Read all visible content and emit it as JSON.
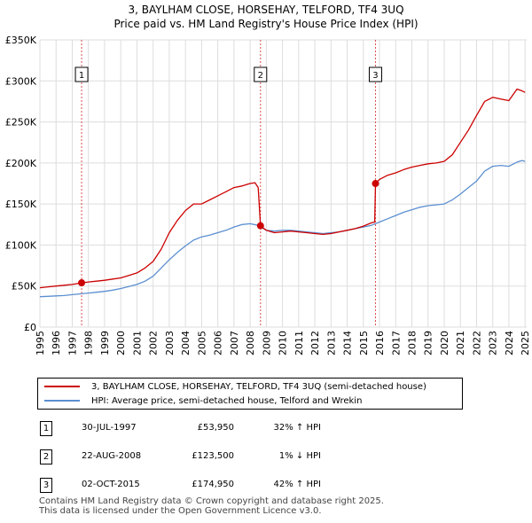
{
  "header": {
    "title": "3, BAYLHAM CLOSE, HORSEHAY, TELFORD, TF4 3UQ",
    "subtitle": "Price paid vs. HM Land Registry's House Price Index (HPI)"
  },
  "colors": {
    "property": "#cc0000",
    "hpi": "#5b8fd0",
    "grid": "#dddddd",
    "marker": "#cc0000",
    "plot_bg": "#ffffff"
  },
  "chart_data": {
    "type": "line",
    "title": "3, BAYLHAM CLOSE, HORSEHAY, TELFORD, TF4 3UQ",
    "subtitle": "Price paid vs. HM Land Registry's House Price Index (HPI)",
    "xlabel": "",
    "ylabel": "",
    "xlim": [
      1995,
      2025.1
    ],
    "ylim": [
      0,
      350000
    ],
    "x_ticks": [
      1995,
      1996,
      1997,
      1998,
      1999,
      2000,
      2001,
      2002,
      2003,
      2004,
      2005,
      2006,
      2007,
      2008,
      2009,
      2010,
      2011,
      2012,
      2013,
      2014,
      2015,
      2016,
      2017,
      2018,
      2019,
      2020,
      2021,
      2022,
      2023,
      2024,
      2025
    ],
    "y_ticks": [
      0,
      50000,
      100000,
      150000,
      200000,
      250000,
      300000,
      350000
    ],
    "y_tick_labels": [
      "£0",
      "£50K",
      "£100K",
      "£150K",
      "£200K",
      "£250K",
      "£300K",
      "£350K"
    ],
    "grid": true,
    "series": [
      {
        "name": "3, BAYLHAM CLOSE, HORSEHAY, TELFORD, TF4 3UQ (semi-detached house)",
        "x": [
          1995,
          1995.5,
          1996,
          1996.5,
          1997,
          1997.58,
          1998,
          1998.5,
          1999,
          1999.5,
          2000,
          2000.5,
          2001,
          2001.5,
          2002,
          2002.5,
          2003,
          2003.5,
          2004,
          2004.5,
          2005,
          2005.5,
          2006,
          2006.5,
          2007,
          2007.5,
          2008,
          2008.3,
          2008.5,
          2008.64,
          2009,
          2009.5,
          2010,
          2010.5,
          2011,
          2011.5,
          2012,
          2012.5,
          2013,
          2013.5,
          2014,
          2014.5,
          2015,
          2015.5,
          2015.7,
          2015.75,
          2016,
          2016.5,
          2017,
          2017.5,
          2018,
          2018.5,
          2019,
          2019.5,
          2020,
          2020.5,
          2021,
          2021.5,
          2022,
          2022.5,
          2023,
          2023.5,
          2024,
          2024.5,
          2024.8,
          2025
        ],
        "values": [
          48000,
          49000,
          50000,
          51000,
          52000,
          53950,
          55000,
          56000,
          57000,
          58500,
          60000,
          63000,
          66000,
          72000,
          80000,
          95000,
          115000,
          130000,
          142000,
          150000,
          150000,
          155000,
          160000,
          165000,
          170000,
          172000,
          175000,
          176000,
          170000,
          123500,
          118000,
          115000,
          116000,
          117000,
          116000,
          115000,
          114000,
          113000,
          114000,
          116000,
          118000,
          120000,
          123000,
          127000,
          128000,
          174950,
          180000,
          185000,
          188000,
          192000,
          195000,
          197000,
          199000,
          200000,
          202000,
          210000,
          225000,
          240000,
          258000,
          275000,
          280000,
          278000,
          276000,
          290000,
          288000,
          286000
        ]
      },
      {
        "name": "HPI: Average price, semi-detached house, Telford and Wrekin",
        "x": [
          1995,
          1995.5,
          1996,
          1996.5,
          1997,
          1997.5,
          1998,
          1998.5,
          1999,
          1999.5,
          2000,
          2000.5,
          2001,
          2001.5,
          2002,
          2002.5,
          2003,
          2003.5,
          2004,
          2004.5,
          2005,
          2005.5,
          2006,
          2006.5,
          2007,
          2007.5,
          2008,
          2008.5,
          2009,
          2009.5,
          2010,
          2010.5,
          2011,
          2011.5,
          2012,
          2012.5,
          2013,
          2013.5,
          2014,
          2014.5,
          2015,
          2015.5,
          2016,
          2016.5,
          2017,
          2017.5,
          2018,
          2018.5,
          2019,
          2019.5,
          2020,
          2020.5,
          2021,
          2021.5,
          2022,
          2022.5,
          2023,
          2023.5,
          2024,
          2024.5,
          2024.8,
          2025
        ],
        "values": [
          37000,
          37500,
          38000,
          38500,
          39500,
          40500,
          41500,
          42500,
          43500,
          45000,
          47000,
          49500,
          52000,
          56000,
          62000,
          72000,
          82000,
          91000,
          99000,
          106000,
          110000,
          112000,
          115000,
          118000,
          122000,
          125000,
          126000,
          124000,
          118000,
          117000,
          118000,
          118000,
          117000,
          116000,
          115000,
          114000,
          115000,
          116000,
          118000,
          120000,
          122000,
          124000,
          128000,
          132000,
          136000,
          140000,
          143000,
          146000,
          148000,
          149000,
          150000,
          155000,
          162000,
          170000,
          178000,
          190000,
          196000,
          197000,
          196000,
          201000,
          203000,
          202000
        ]
      }
    ],
    "sale_markers": [
      {
        "label": "1",
        "x": 1997.58,
        "value": 53950
      },
      {
        "label": "2",
        "x": 2008.64,
        "value": 123500
      },
      {
        "label": "3",
        "x": 2015.75,
        "value": 174950
      }
    ]
  },
  "legend": {
    "property_label": "3, BAYLHAM CLOSE, HORSEHAY, TELFORD, TF4 3UQ (semi-detached house)",
    "hpi_label": "HPI: Average price, semi-detached house, Telford and Wrekin"
  },
  "sales": [
    {
      "num": "1",
      "date": "30-JUL-1997",
      "price": "£53,950",
      "hpi": "32% ↑ HPI"
    },
    {
      "num": "2",
      "date": "22-AUG-2008",
      "price": "£123,500",
      "hpi": "1% ↓ HPI"
    },
    {
      "num": "3",
      "date": "02-OCT-2015",
      "price": "£174,950",
      "hpi": "42% ↑ HPI"
    }
  ],
  "footer": {
    "line1": "Contains HM Land Registry data © Crown copyright and database right 2025.",
    "line2": "This data is licensed under the Open Government Licence v3.0."
  }
}
